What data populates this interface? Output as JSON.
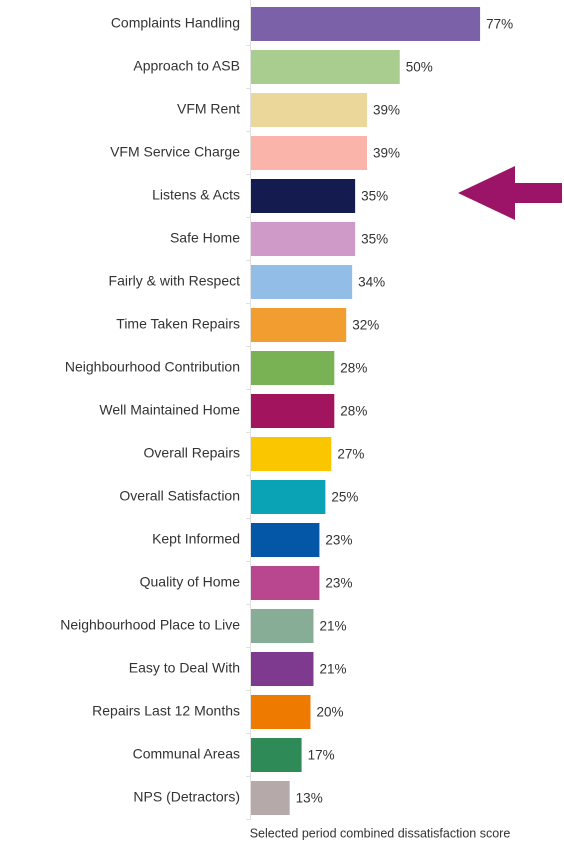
{
  "chart_data": {
    "type": "bar",
    "orientation": "horizontal",
    "x_label": "Selected period combined dissatisfaction score",
    "categories": [
      "Complaints Handling",
      "Approach to ASB",
      "VFM Rent",
      "VFM Service Charge",
      "Listens & Acts",
      "Safe Home",
      "Fairly & with Respect",
      "Time Taken Repairs",
      "Neighbourhood Contribution",
      "Well Maintained Home",
      "Overall Repairs",
      "Overall Satisfaction",
      "Kept Informed",
      "Quality of Home",
      "Neighbourhood Place to Live",
      "Easy to Deal With",
      "Repairs Last 12 Months",
      "Communal Areas",
      "NPS (Detractors)"
    ],
    "values": [
      77,
      50,
      39,
      39,
      35,
      35,
      34,
      32,
      28,
      28,
      27,
      25,
      23,
      23,
      21,
      21,
      20,
      17,
      13
    ],
    "value_labels": [
      "77%",
      "50%",
      "39%",
      "39%",
      "35%",
      "35%",
      "34%",
      "32%",
      "28%",
      "28%",
      "27%",
      "25%",
      "23%",
      "23%",
      "21%",
      "21%",
      "20%",
      "17%",
      "13%"
    ],
    "colors": [
      "#7b62a8",
      "#a8cd8f",
      "#ecd79a",
      "#fbb4aa",
      "#141c4f",
      "#cf9ac8",
      "#92bde6",
      "#f29d2f",
      "#78b254",
      "#a3145f",
      "#f9c600",
      "#0aa3b6",
      "#0457a6",
      "#b8478f",
      "#88ad96",
      "#7e3a8f",
      "#ef7a00",
      "#2e8b57",
      "#b5aaa9"
    ],
    "xlim": [
      0,
      100
    ]
  }
}
